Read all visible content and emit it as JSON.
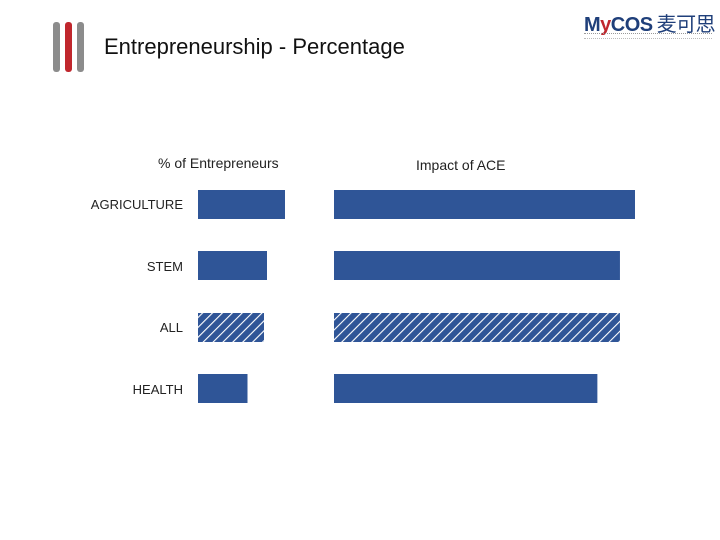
{
  "header": {
    "title": "Entrepreneurship - Percentage",
    "logo_text_latin_1": "M",
    "logo_text_latin_2": "y",
    "logo_text_latin_3": "COS",
    "logo_text_cn": "麦可思"
  },
  "colors": {
    "bar": "#2f5597",
    "accent_red": "#c0272d",
    "accent_gray": "#8c8c8c"
  },
  "chart_data": {
    "type": "bar",
    "orientation": "horizontal",
    "categories": [
      "AGRICULTURE",
      "STEM",
      "ALL",
      "HEALTH"
    ],
    "hatched_category": "ALL",
    "panels": [
      {
        "title": "% of Entrepreneurs",
        "values": [
          0.29,
          0.23,
          0.22,
          0.165
        ]
      },
      {
        "title": "Impact of ACE",
        "values": [
          1.0,
          0.95,
          0.95,
          0.875
        ]
      }
    ],
    "axis_labels_visible": false,
    "grid": false,
    "legend": false
  }
}
